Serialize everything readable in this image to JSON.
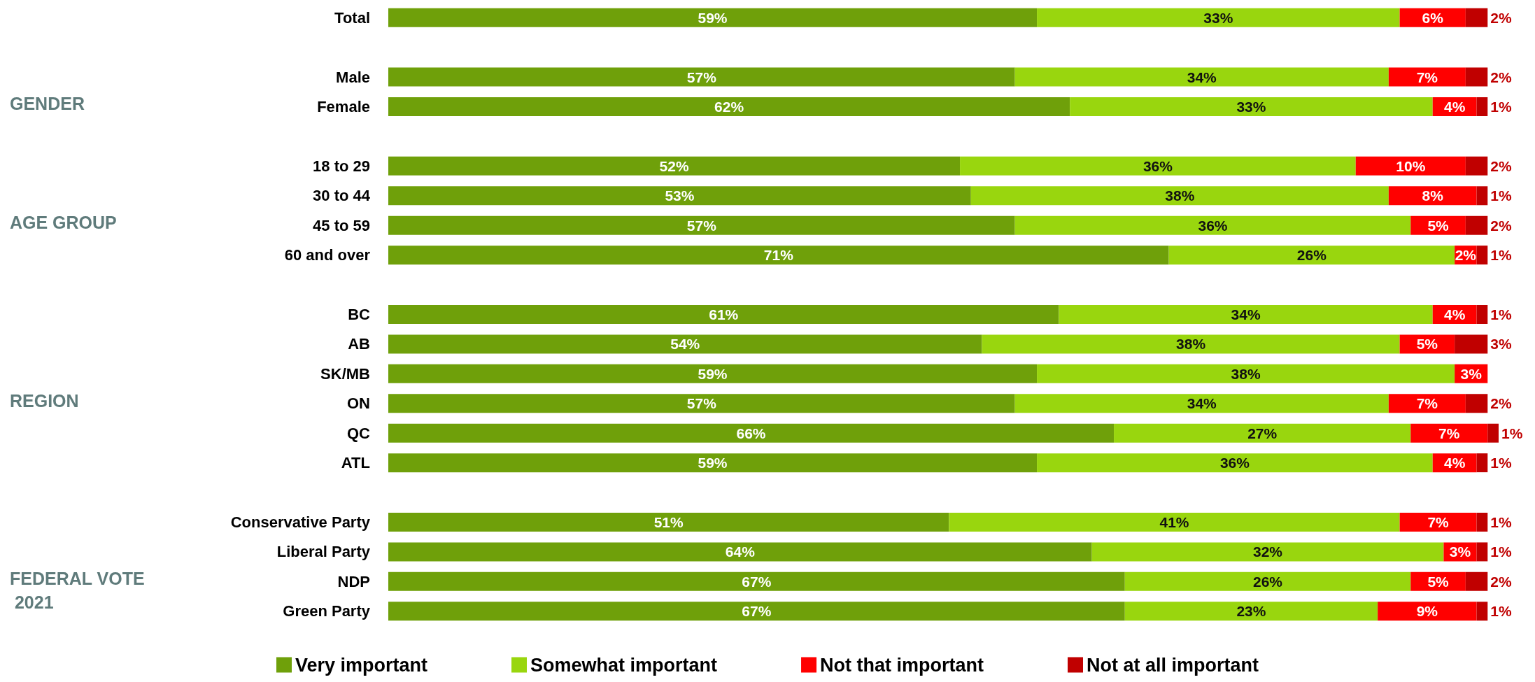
{
  "chart_data": {
    "type": "bar",
    "orientation": "horizontal",
    "stacked": true,
    "legend": "bottom",
    "grid": false,
    "categories": [
      "Total",
      null,
      "Male",
      "Female",
      null,
      "18 to 29",
      "30 to 44",
      "45 to 59",
      "60 and over",
      null,
      "BC",
      "AB",
      "SK/MB",
      "ON",
      "QC",
      "ATL",
      null,
      "Conservative Party",
      "Liberal Party",
      "NDP",
      "Green Party"
    ],
    "annotations": [
      "GENDER",
      "AGE GROUP",
      "REGION",
      "FEDERAL VOTE 2021"
    ],
    "series": [
      {
        "name": "Very important",
        "color": "#6fa00a",
        "values": [
          59,
          null,
          57,
          62,
          null,
          52,
          53,
          57,
          71,
          null,
          61,
          54,
          59,
          57,
          66,
          59,
          null,
          51,
          64,
          67,
          67
        ],
        "value_labels": [
          "59%",
          null,
          "57%",
          "62%",
          null,
          "52%",
          "53%",
          "57%",
          "71%",
          null,
          "61%",
          "54%",
          "59%",
          "57%",
          "66%",
          "59%",
          null,
          "51%",
          "64%",
          "67%",
          "67%"
        ]
      },
      {
        "name": "Somewhat important",
        "color": "#99d60e",
        "values": [
          33,
          null,
          34,
          33,
          null,
          36,
          38,
          36,
          26,
          null,
          34,
          38,
          38,
          34,
          27,
          36,
          null,
          41,
          32,
          26,
          23
        ],
        "value_labels": [
          "33%",
          null,
          "34%",
          "33%",
          null,
          "36%",
          "38%",
          "36%",
          "26%",
          null,
          "34%",
          "38%",
          "38%",
          "34%",
          "27%",
          "36%",
          null,
          "41%",
          "32%",
          "26%",
          "23%"
        ]
      },
      {
        "name": "Not that important",
        "color": "#ff0000",
        "values": [
          6,
          null,
          7,
          4,
          null,
          10,
          8,
          5,
          2,
          null,
          4,
          5,
          3,
          7,
          7,
          4,
          null,
          7,
          3,
          5,
          9
        ],
        "value_labels": [
          "6%",
          null,
          "7%",
          "4%",
          null,
          "10%",
          "8%",
          "5%",
          "2%",
          null,
          "4%",
          "5%",
          "3%",
          "7%",
          "7%",
          "4%",
          null,
          "7%",
          "3%",
          "5%",
          "9%"
        ]
      },
      {
        "name": "Not at all important",
        "color": "#c00000",
        "values": [
          2,
          null,
          2,
          1,
          null,
          2,
          1,
          2,
          1,
          null,
          1,
          3,
          null,
          2,
          1,
          1,
          null,
          1,
          1,
          2,
          1
        ],
        "value_labels": [
          "2%",
          null,
          "2%",
          "1%",
          null,
          "2%",
          "1%",
          "2%",
          "1%",
          null,
          "1%",
          "3%",
          null,
          "2%",
          "1%",
          "1%",
          null,
          "1%",
          "1%",
          "2%",
          "1%"
        ]
      }
    ]
  }
}
